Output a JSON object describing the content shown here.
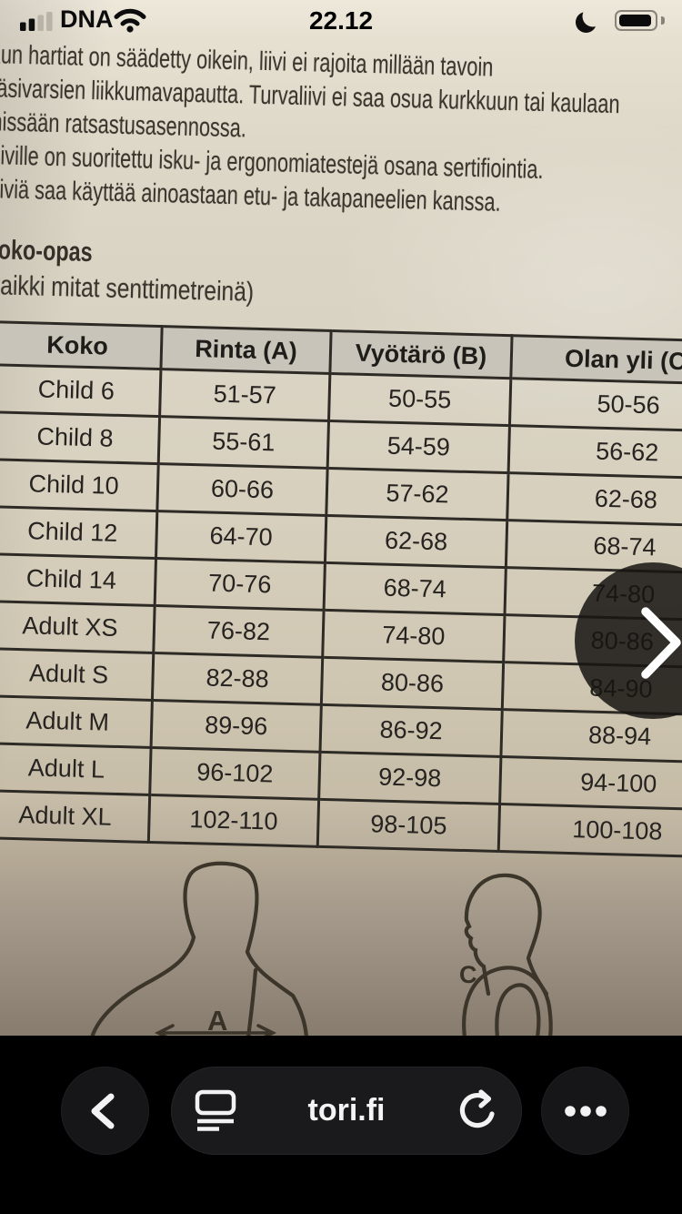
{
  "status_bar": {
    "carrier": "DNA",
    "time": "22.12",
    "signal_icon": "cellular-signal",
    "wifi_icon": "wifi",
    "focus_icon": "moon",
    "battery_icon": "battery"
  },
  "photo": {
    "paragraph_lines": [
      "Kun hartiat on säädetty oikein, liivi ei rajoita millään tavoin",
      "käsivarsien liikkumavapautta. Turvaliivi ei saa osua kurkkuun tai kaulaan",
      "missään ratsastusasennossa.",
      "Liiville on suoritettu isku- ja ergonomiatestejä osana sertifiointia.",
      "Liiviä saa käyttää ainoastaan etu- ja takapaneelien kanssa."
    ],
    "size_guide_title": "Koko-opas",
    "size_guide_note": "(kaikki mitat senttimetreinä)",
    "table": {
      "headers": [
        "Koko",
        "Rinta (A)",
        "Vyötärö (B)",
        "Olan yli (C)"
      ],
      "rows": [
        [
          "Child 6",
          "51-57",
          "50-55",
          "50-56"
        ],
        [
          "Child 8",
          "55-61",
          "54-59",
          "56-62"
        ],
        [
          "Child 10",
          "60-66",
          "57-62",
          "62-68"
        ],
        [
          "Child 12",
          "64-70",
          "62-68",
          "68-74"
        ],
        [
          "Child 14",
          "70-76",
          "68-74",
          "74-80"
        ],
        [
          "Adult XS",
          "76-82",
          "74-80",
          "80-86"
        ],
        [
          "Adult S",
          "82-88",
          "80-86",
          "84-90"
        ],
        [
          "Adult M",
          "89-96",
          "86-92",
          "88-94"
        ],
        [
          "Adult L",
          "96-102",
          "92-98",
          "94-100"
        ],
        [
          "Adult XL",
          "102-110",
          "98-105",
          "100-108"
        ]
      ]
    },
    "diagram": {
      "front_label": "A",
      "side_label": "C"
    }
  },
  "gallery": {
    "next_icon": "chevron-right"
  },
  "toolbar": {
    "back_icon": "chevron-left",
    "reader_icon": "reader-view",
    "url": "tori.fi",
    "refresh_icon": "refresh",
    "more_icon": "ellipsis"
  },
  "colors": {
    "paper_light": "#eee8db",
    "paper_dark": "#877c6e",
    "overlay_circle": "rgba(22,20,18,0.85)",
    "toolbar_button": "#161618",
    "status_text": "#0c0c0c"
  }
}
